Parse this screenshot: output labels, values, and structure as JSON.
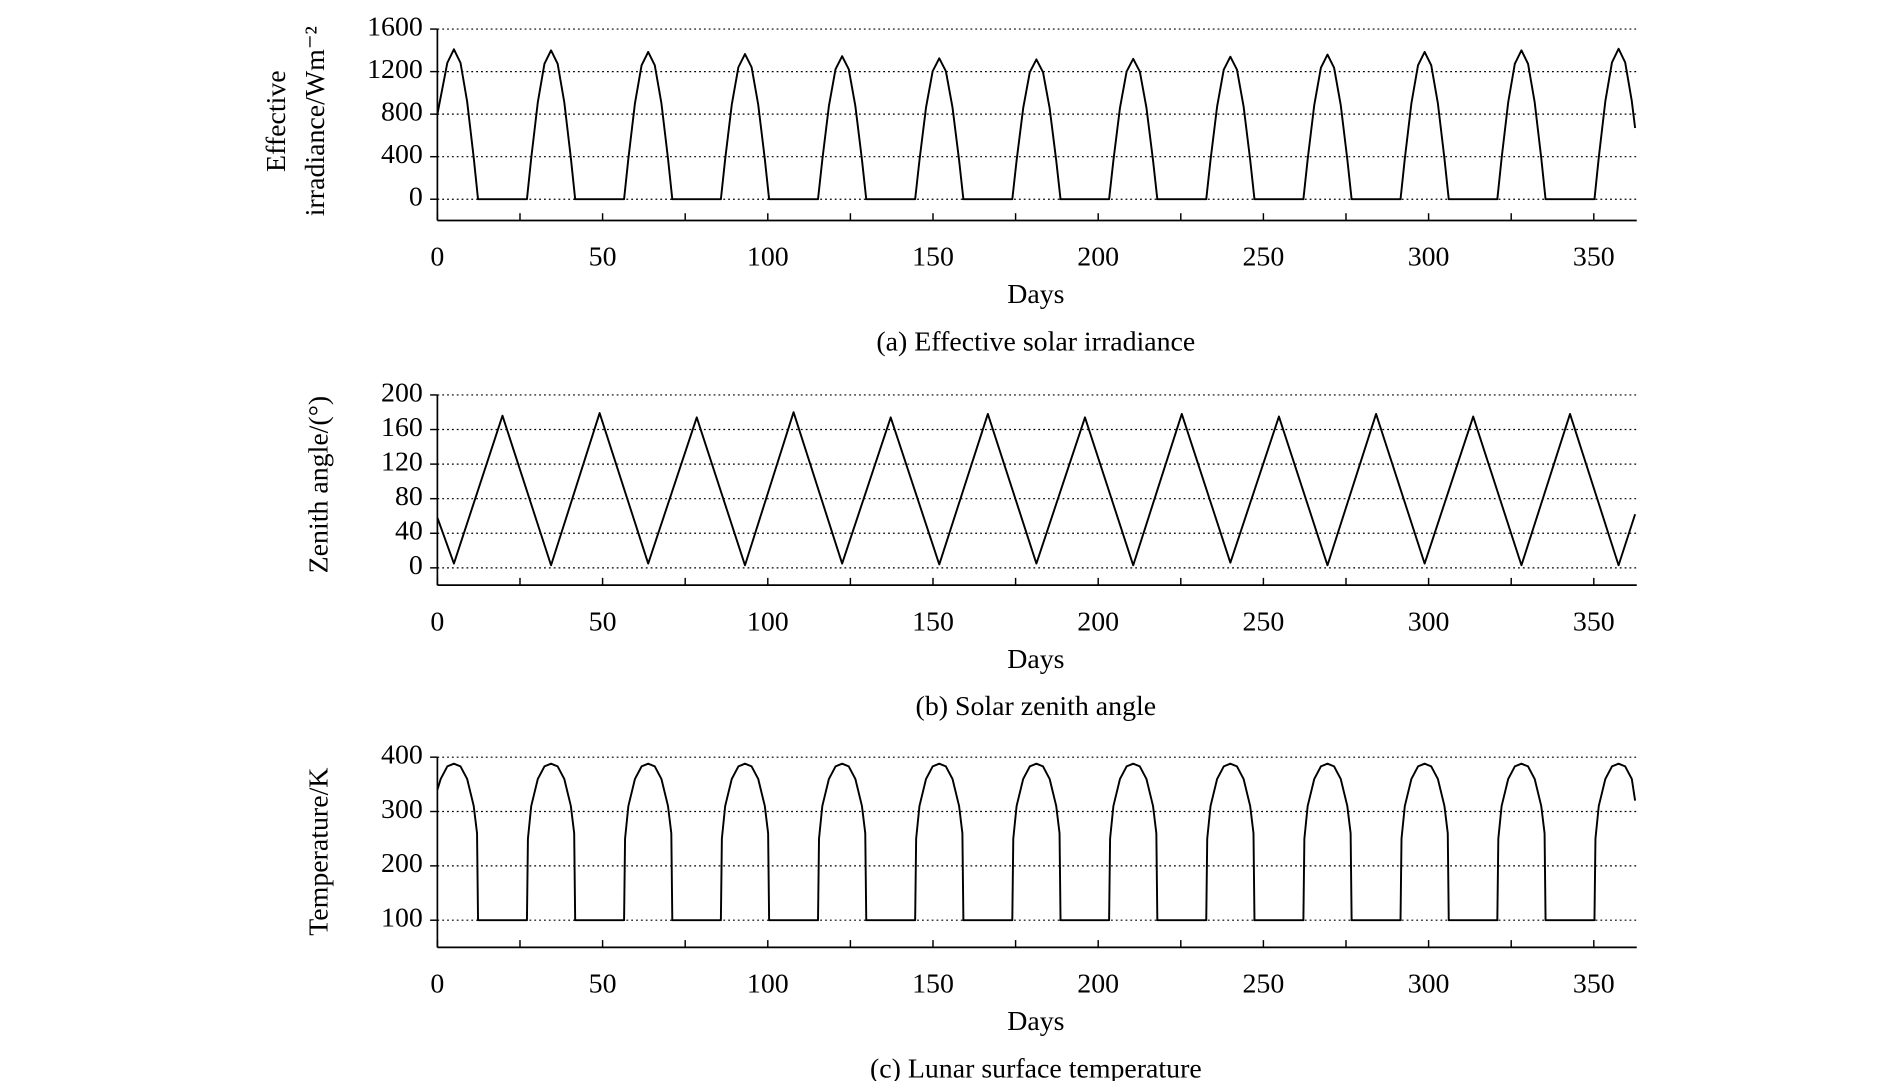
{
  "chart_data": [
    {
      "type": "line",
      "caption": "(a) Effective solar irradiance",
      "xlabel": "Days",
      "ylabel": [
        "Effective",
        "irradiance/Wm⁻²"
      ],
      "xlim": [
        0,
        363
      ],
      "xticks": [
        0,
        50,
        100,
        150,
        200,
        250,
        300,
        350
      ],
      "xminorticks": [
        25,
        75,
        125,
        175,
        225,
        275,
        325
      ],
      "ylim": [
        -200,
        1600
      ],
      "yticks": [
        0,
        400,
        800,
        1200,
        1600
      ],
      "grid": true,
      "color": "#000000",
      "x": [
        0,
        3,
        5,
        7,
        9,
        11,
        12.3,
        27.1,
        28.4,
        30.4,
        32.4,
        34.4,
        36.4,
        38.4,
        40.4,
        41.7,
        56.5,
        57.8,
        59.8,
        61.8,
        63.8,
        65.8,
        67.8,
        69.8,
        71.1,
        85.8,
        87.1,
        89.1,
        91.1,
        93.1,
        95.1,
        97.1,
        99.1,
        100.4,
        115.2,
        116.5,
        118.5,
        120.5,
        122.5,
        124.5,
        126.5,
        128.5,
        129.8,
        144.6,
        145.9,
        147.9,
        149.9,
        151.9,
        153.9,
        155.9,
        157.9,
        159.2,
        174,
        175.3,
        177.3,
        179.3,
        181.3,
        183.3,
        185.3,
        187.3,
        188.6,
        203.3,
        204.6,
        206.6,
        208.6,
        210.6,
        212.6,
        214.6,
        216.6,
        217.9,
        232.7,
        234,
        236,
        238,
        240,
        242,
        244,
        246,
        247.3,
        262.1,
        263.4,
        265.4,
        267.4,
        269.4,
        271.4,
        273.4,
        275.4,
        276.7,
        291.5,
        292.8,
        294.8,
        296.8,
        298.8,
        300.8,
        302.8,
        304.8,
        306.1,
        320.8,
        322.1,
        324.1,
        326.1,
        328.1,
        330.1,
        332.1,
        334.1,
        335.4,
        350.2,
        351.5,
        353.5,
        355.5,
        357.5,
        359.5,
        361.5,
        362.5
      ],
      "values": [
        800,
        1282,
        1410,
        1282,
        919,
        389,
        0,
        0,
        386,
        913,
        1273,
        1400,
        1273,
        913,
        386,
        0,
        0,
        382,
        903,
        1259,
        1385,
        1259,
        903,
        382,
        0,
        0,
        377,
        890,
        1241,
        1365,
        1241,
        890,
        377,
        0,
        0,
        371,
        877,
        1223,
        1345,
        1223,
        877,
        371,
        0,
        0,
        366,
        864,
        1204,
        1325,
        1204,
        864,
        366,
        0,
        0,
        363,
        857,
        1195,
        1315,
        1195,
        857,
        363,
        0,
        0,
        364,
        861,
        1200,
        1320,
        1200,
        861,
        364,
        0,
        0,
        370,
        874,
        1218,
        1340,
        1218,
        874,
        370,
        0,
        0,
        375,
        887,
        1236,
        1360,
        1236,
        887,
        375,
        0,
        0,
        382,
        903,
        1259,
        1385,
        1259,
        903,
        382,
        0,
        0,
        386,
        913,
        1273,
        1400,
        1273,
        913,
        386,
        0,
        0,
        391,
        923,
        1286,
        1415,
        1286,
        923,
        670
      ]
    },
    {
      "type": "line",
      "caption": "(b) Solar zenith angle",
      "xlabel": "Days",
      "ylabel": "Zenith angle/(°)",
      "xlim": [
        0,
        363
      ],
      "xticks": [
        0,
        50,
        100,
        150,
        200,
        250,
        300,
        350
      ],
      "xminorticks": [
        25,
        75,
        125,
        175,
        225,
        275,
        325
      ],
      "ylim": [
        -20,
        200
      ],
      "yticks": [
        0,
        40,
        80,
        120,
        160,
        200
      ],
      "grid": true,
      "color": "#000000",
      "x": [
        0,
        5,
        19.7,
        34.4,
        49.1,
        63.8,
        78.5,
        93.1,
        107.8,
        122.5,
        137.2,
        151.9,
        166.6,
        181.3,
        196,
        210.6,
        225.3,
        240,
        254.7,
        269.4,
        284.1,
        298.8,
        313.5,
        328.1,
        342.8,
        357.5,
        362.5
      ],
      "values": [
        58,
        5,
        176,
        3,
        179,
        5,
        174,
        3,
        180,
        5,
        174,
        4,
        178,
        5,
        174,
        3,
        178,
        6,
        175,
        3,
        178,
        5,
        175,
        3,
        178,
        3,
        62
      ]
    },
    {
      "type": "line",
      "caption": "(c) Lunar surface temperature",
      "xlabel": "Days",
      "ylabel": "Temperature/K",
      "xlim": [
        0,
        363
      ],
      "xticks": [
        0,
        50,
        100,
        150,
        200,
        250,
        300,
        350
      ],
      "xminorticks": [
        25,
        75,
        125,
        175,
        225,
        275,
        325
      ],
      "ylim": [
        50,
        400
      ],
      "yticks": [
        100,
        200,
        300,
        400
      ],
      "grid": true,
      "color": "#000000",
      "x": [
        0,
        1,
        3,
        5,
        7,
        9,
        11,
        12,
        12.3,
        27.1,
        27.4,
        28.4,
        30.4,
        32.4,
        34.4,
        36.4,
        38.4,
        40.4,
        41.4,
        41.7,
        56.5,
        56.8,
        57.8,
        59.8,
        61.8,
        63.8,
        65.8,
        67.8,
        69.8,
        70.8,
        71.1,
        85.8,
        86.1,
        87.1,
        89.1,
        91.1,
        93.1,
        95.1,
        97.1,
        99.1,
        100.1,
        100.4,
        115.2,
        115.5,
        116.5,
        118.5,
        120.5,
        122.5,
        124.5,
        126.5,
        128.5,
        129.5,
        129.8,
        144.6,
        144.9,
        145.9,
        147.9,
        149.9,
        151.9,
        153.9,
        155.9,
        157.9,
        158.9,
        159.2,
        174,
        174.3,
        175.3,
        177.3,
        179.3,
        181.3,
        183.3,
        185.3,
        187.3,
        188.3,
        188.6,
        203.3,
        203.6,
        204.6,
        206.6,
        208.6,
        210.6,
        212.6,
        214.6,
        216.6,
        217.6,
        217.9,
        232.7,
        233,
        234,
        236,
        238,
        240,
        242,
        244,
        246,
        247,
        247.3,
        262.1,
        262.4,
        263.4,
        265.4,
        267.4,
        269.4,
        271.4,
        273.4,
        275.4,
        276.4,
        276.7,
        291.5,
        291.8,
        292.8,
        294.8,
        296.8,
        298.8,
        300.8,
        302.8,
        304.8,
        305.8,
        306.1,
        320.8,
        321.1,
        322.1,
        324.1,
        326.1,
        328.1,
        330.1,
        332.1,
        334.1,
        335.1,
        335.4,
        350.2,
        350.5,
        351.5,
        353.5,
        355.5,
        357.5,
        359.5,
        361.5,
        362.5
      ],
      "values": [
        340,
        360,
        383,
        388,
        383,
        360,
        310,
        260,
        100,
        100,
        250,
        310,
        360,
        383,
        388,
        383,
        360,
        310,
        260,
        100,
        100,
        250,
        310,
        360,
        383,
        388,
        383,
        360,
        310,
        260,
        100,
        100,
        250,
        310,
        360,
        383,
        388,
        383,
        360,
        310,
        260,
        100,
        100,
        250,
        310,
        360,
        383,
        388,
        383,
        360,
        310,
        260,
        100,
        100,
        250,
        310,
        360,
        383,
        388,
        383,
        360,
        310,
        260,
        100,
        100,
        250,
        310,
        360,
        383,
        388,
        383,
        360,
        310,
        260,
        100,
        100,
        250,
        310,
        360,
        383,
        388,
        383,
        360,
        310,
        260,
        100,
        100,
        250,
        310,
        360,
        383,
        388,
        383,
        360,
        310,
        260,
        100,
        100,
        250,
        310,
        360,
        383,
        388,
        383,
        360,
        310,
        260,
        100,
        100,
        250,
        310,
        360,
        383,
        388,
        383,
        360,
        310,
        260,
        100,
        100,
        250,
        310,
        360,
        383,
        388,
        383,
        360,
        310,
        260,
        100,
        100,
        250,
        310,
        360,
        383,
        388,
        383,
        360,
        320
      ]
    }
  ]
}
